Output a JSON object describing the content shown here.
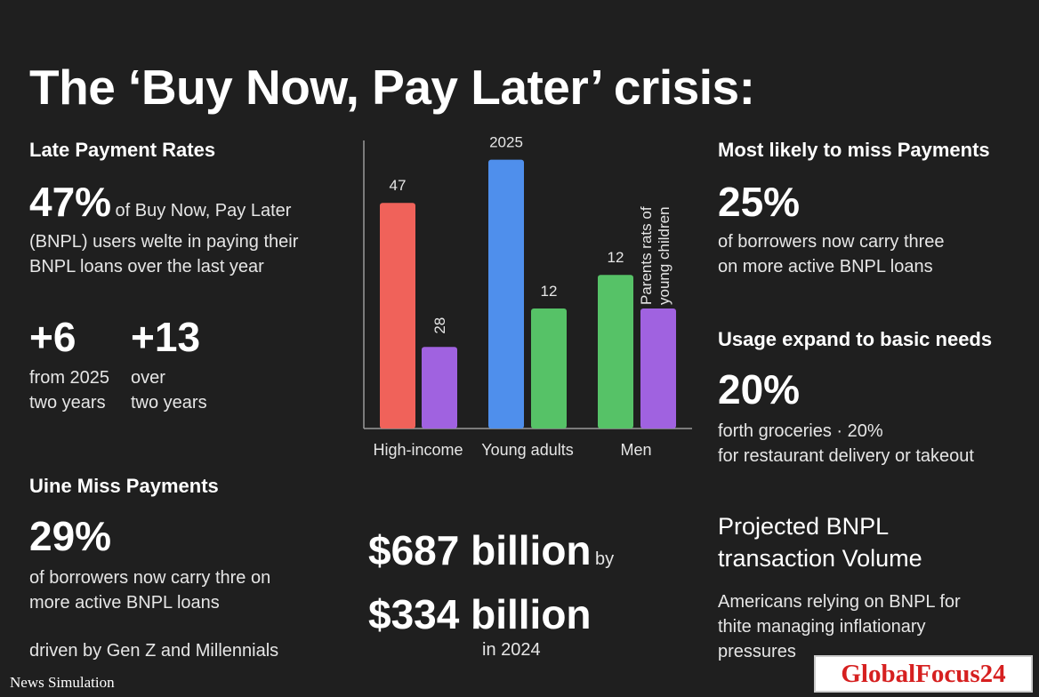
{
  "title": "The ‘Buy Now, Pay Later’ crisis:",
  "left": {
    "late_heading": "Late Payment Rates",
    "late_stat": "47%",
    "late_desc_inline": "of Buy Now, Pay Later",
    "late_desc_line2": "(BNPL) users welte in paying their",
    "late_desc_line3": "BNPL loans over the last year",
    "delta1_value": "+6",
    "delta1_line1": "from 2025",
    "delta1_line2": "two years",
    "delta2_value": "+13",
    "delta2_line1": "over",
    "delta2_line2": "two years",
    "miss_heading": "Uine Miss Payments",
    "miss_stat": "29%",
    "miss_line1": "of borrowers now carry thre on",
    "miss_line2": "more active BNPL loans",
    "miss_driver": "driven by Gen Z and Millennials"
  },
  "center": {
    "amount1": "$687 billion",
    "amount1_suffix": "by",
    "amount2": "$334 billion",
    "amount2_suffix": "in 2024"
  },
  "right": {
    "likely_heading": "Most likely to miss Payments",
    "likely_stat": "25%",
    "likely_line1": "of borrowers now carry three",
    "likely_line2": "on more active BNPL loans",
    "usage_heading": "Usage expand to basic needs",
    "usage_stat": "20%",
    "usage_line1": "forth groceries · 20%",
    "usage_line2": "for restaurant delivery or takeout",
    "proj_line1": "Projected BNPL",
    "proj_line2": "transaction Volume",
    "americans_line1": "Americans relying on BNPL for",
    "americans_line2": "thite managing inflationary",
    "americans_line3": "pressures"
  },
  "chart_data": {
    "type": "bar",
    "categories": [
      "High-income",
      "Young adults",
      "Men"
    ],
    "series": [
      {
        "values": [
          47,
          56,
          32
        ],
        "color": "#f0625a"
      },
      {
        "values": [
          17,
          25,
          25
        ],
        "color": "#a062e0"
      }
    ],
    "bars": [
      {
        "category": "High-income",
        "value": 47,
        "label": "47",
        "color": "#f0625a"
      },
      {
        "category": "High-income",
        "value": 17,
        "label": "28",
        "color": "#a062e0"
      },
      {
        "category": "Young adults",
        "value": 56,
        "label": "2025",
        "color": "#4f8fec"
      },
      {
        "category": "Young adults",
        "value": 25,
        "label": "12",
        "color": "#56c267"
      },
      {
        "category": "Men",
        "value": 32,
        "label": "12",
        "color": "#56c267"
      },
      {
        "category": "Men",
        "value": 25,
        "label": "Parents rats of young children",
        "color": "#a062e0"
      }
    ],
    "ylim": [
      0,
      60
    ],
    "grid": false,
    "xlabel": "",
    "ylabel": ""
  },
  "footer": {
    "watermark": "News Simulation",
    "logo": "GlobalFocus24"
  }
}
